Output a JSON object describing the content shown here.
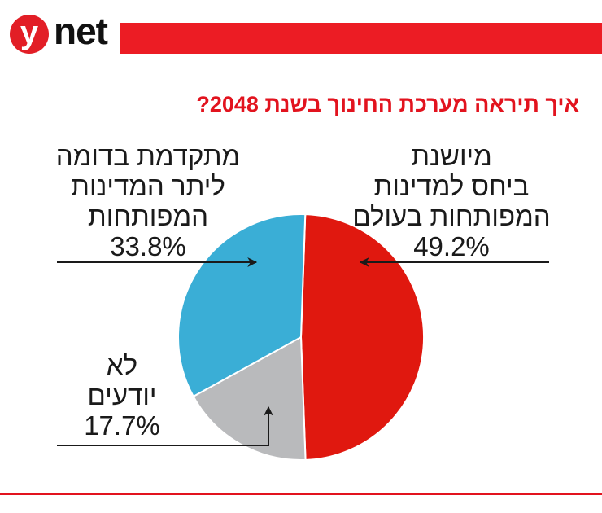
{
  "header": {
    "logo_y": "y",
    "logo_net": "net",
    "accent_color": "#ec1c24"
  },
  "chart_data": {
    "type": "pie",
    "title": "איך תיראה מערכת החינוך בשנת 2048?",
    "slices": [
      {
        "label": "מיושנת ביחס למדינות המפותחות בעולם",
        "label_lines": [
          "מיושנת",
          "ביחס למדינות",
          "המפותחות בעולם"
        ],
        "value": 49.2,
        "value_label": "49.2%",
        "color": "#e0180f"
      },
      {
        "label": "לא יודעים",
        "label_lines": [
          "לא",
          "יודעים"
        ],
        "value": 17.7,
        "value_label": "17.7%",
        "color": "#b9babc"
      },
      {
        "label": "מתקדמת בדומה ליתר המדינות המפותחות",
        "label_lines": [
          "מתקדמת בדומה",
          "ליתר המדינות",
          "המפותחות"
        ],
        "value": 33.8,
        "value_label": "33.8%",
        "color": "#3aaed6"
      }
    ],
    "start_angle_deg": 2,
    "direction": "clockwise"
  }
}
